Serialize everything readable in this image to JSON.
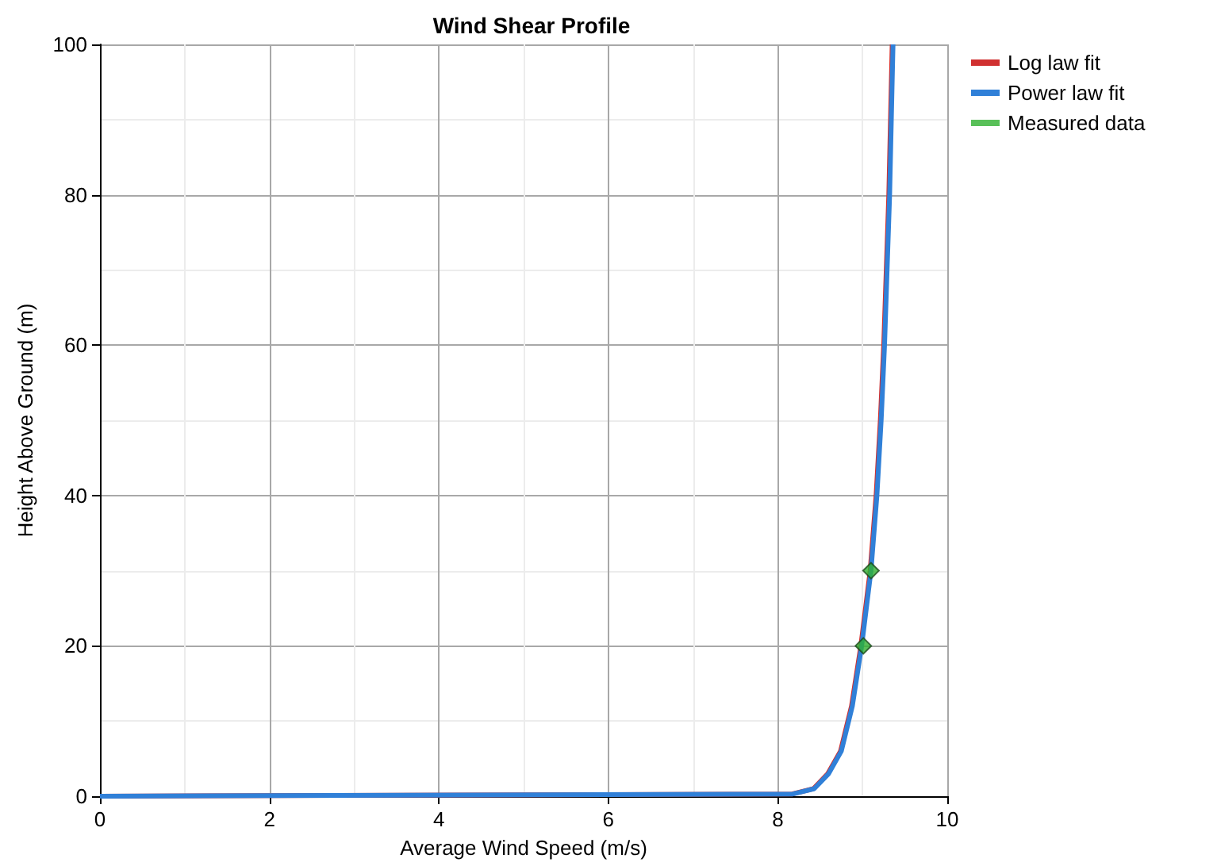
{
  "chart_data": {
    "type": "line",
    "title": "Wind Shear Profile",
    "xlabel": "Average Wind Speed (m/s)",
    "ylabel": "Height Above Ground (m)",
    "xlim": [
      0,
      10
    ],
    "xticks": [
      0,
      2,
      4,
      6,
      8,
      10
    ],
    "ylim": [
      0,
      100
    ],
    "yticks": [
      0,
      20,
      40,
      60,
      80,
      100
    ],
    "grid": true,
    "legend": "top right",
    "series": [
      {
        "name": "Log law fit",
        "color": "#d03030",
        "x": [
          0,
          8.17,
          8.42,
          8.59,
          8.74,
          8.87,
          8.98,
          9.09,
          9.16,
          9.21,
          9.25,
          9.28,
          9.31,
          9.33,
          9.35
        ],
        "values": [
          0,
          0.3,
          1,
          3,
          6,
          12,
          20,
          30,
          40,
          50,
          60,
          70,
          80,
          90,
          100
        ]
      },
      {
        "name": "Power law fit",
        "color": "#3080d8",
        "x": [
          0,
          8.18,
          8.43,
          8.6,
          8.75,
          8.88,
          8.99,
          9.1,
          9.17,
          9.22,
          9.26,
          9.29,
          9.32,
          9.34,
          9.36
        ],
        "values": [
          0,
          0.3,
          1,
          3,
          6,
          12,
          20,
          30,
          40,
          50,
          60,
          70,
          80,
          90,
          100
        ]
      },
      {
        "name": "Measured data",
        "color": "#30b030",
        "type": "scatter",
        "marker": "diamond",
        "x": [
          9.01,
          9.1
        ],
        "values": [
          20,
          30
        ]
      }
    ]
  }
}
